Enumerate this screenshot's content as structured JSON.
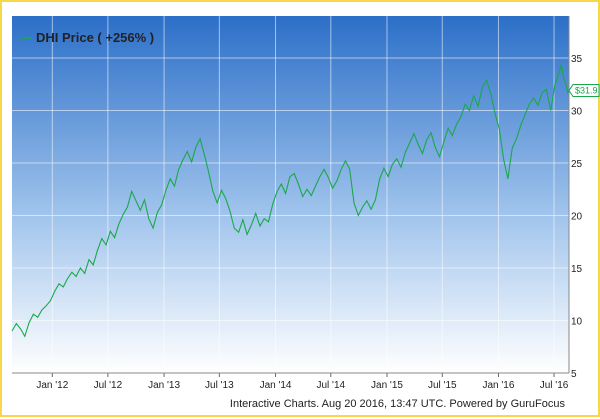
{
  "chart_data": {
    "type": "line",
    "legend": "DHI Price ( +256% )",
    "legend_position": "top-left",
    "series_color": "#1aa84a",
    "last_value_label": "$31.9",
    "credits": "Interactive Charts. Aug 20 2016, 13:47 UTC. Powered by GuruFocus",
    "grid": true,
    "ylim": [
      5,
      39
    ],
    "y_ticks": [
      5,
      10,
      15,
      20,
      25,
      30,
      35
    ],
    "x_ticks": [
      {
        "label": "Jan '12",
        "date": "2012-01-01"
      },
      {
        "label": "Jul '12",
        "date": "2012-07-01"
      },
      {
        "label": "Jan '13",
        "date": "2013-01-01"
      },
      {
        "label": "Jul '13",
        "date": "2013-07-01"
      },
      {
        "label": "Jan '14",
        "date": "2014-01-01"
      },
      {
        "label": "Jul '14",
        "date": "2014-07-01"
      },
      {
        "label": "Jan '15",
        "date": "2015-01-01"
      },
      {
        "label": "Jul '15",
        "date": "2015-07-01"
      },
      {
        "label": "Jan '16",
        "date": "2016-01-01"
      },
      {
        "label": "Jul '16",
        "date": "2016-07-01"
      }
    ],
    "x_range": [
      "2011-08-22",
      "2016-08-19"
    ],
    "series": [
      {
        "points": [
          [
            "2011-08-22",
            9.0
          ],
          [
            "2011-09-05",
            9.7
          ],
          [
            "2011-09-19",
            9.2
          ],
          [
            "2011-10-03",
            8.5
          ],
          [
            "2011-10-17",
            9.8
          ],
          [
            "2011-10-31",
            10.6
          ],
          [
            "2011-11-14",
            10.3
          ],
          [
            "2011-11-28",
            11.0
          ],
          [
            "2011-12-12",
            11.4
          ],
          [
            "2011-12-26",
            11.9
          ],
          [
            "2012-01-09",
            12.8
          ],
          [
            "2012-01-23",
            13.5
          ],
          [
            "2012-02-06",
            13.2
          ],
          [
            "2012-02-20",
            14.0
          ],
          [
            "2012-03-05",
            14.6
          ],
          [
            "2012-03-19",
            14.2
          ],
          [
            "2012-04-02",
            15.0
          ],
          [
            "2012-04-16",
            14.5
          ],
          [
            "2012-04-30",
            15.8
          ],
          [
            "2012-05-14",
            15.3
          ],
          [
            "2012-05-28",
            16.7
          ],
          [
            "2012-06-11",
            17.8
          ],
          [
            "2012-06-25",
            17.2
          ],
          [
            "2012-07-09",
            18.5
          ],
          [
            "2012-07-23",
            17.9
          ],
          [
            "2012-08-06",
            19.2
          ],
          [
            "2012-08-20",
            20.1
          ],
          [
            "2012-09-03",
            20.8
          ],
          [
            "2012-09-17",
            22.3
          ],
          [
            "2012-10-01",
            21.4
          ],
          [
            "2012-10-15",
            20.5
          ],
          [
            "2012-10-29",
            21.5
          ],
          [
            "2012-11-12",
            19.7
          ],
          [
            "2012-11-26",
            18.8
          ],
          [
            "2012-12-10",
            20.3
          ],
          [
            "2012-12-24",
            21.0
          ],
          [
            "2013-01-07",
            22.4
          ],
          [
            "2013-01-21",
            23.5
          ],
          [
            "2013-02-04",
            22.8
          ],
          [
            "2013-02-18",
            24.4
          ],
          [
            "2013-03-04",
            25.3
          ],
          [
            "2013-03-18",
            26.1
          ],
          [
            "2013-04-01",
            25.1
          ],
          [
            "2013-04-15",
            26.5
          ],
          [
            "2013-04-29",
            27.3
          ],
          [
            "2013-05-13",
            25.8
          ],
          [
            "2013-05-27",
            24.1
          ],
          [
            "2013-06-10",
            22.3
          ],
          [
            "2013-06-24",
            21.2
          ],
          [
            "2013-07-08",
            22.4
          ],
          [
            "2013-07-22",
            21.6
          ],
          [
            "2013-08-05",
            20.4
          ],
          [
            "2013-08-19",
            18.8
          ],
          [
            "2013-09-02",
            18.4
          ],
          [
            "2013-09-16",
            19.6
          ],
          [
            "2013-09-30",
            18.2
          ],
          [
            "2013-10-14",
            19.1
          ],
          [
            "2013-10-28",
            20.2
          ],
          [
            "2013-11-11",
            19.0
          ],
          [
            "2013-11-25",
            19.7
          ],
          [
            "2013-12-09",
            19.4
          ],
          [
            "2013-12-23",
            21.1
          ],
          [
            "2014-01-06",
            22.3
          ],
          [
            "2014-01-20",
            23.0
          ],
          [
            "2014-02-03",
            22.1
          ],
          [
            "2014-02-17",
            23.7
          ],
          [
            "2014-03-03",
            24.0
          ],
          [
            "2014-03-17",
            23.0
          ],
          [
            "2014-03-31",
            21.8
          ],
          [
            "2014-04-14",
            22.5
          ],
          [
            "2014-04-28",
            21.9
          ],
          [
            "2014-05-12",
            22.8
          ],
          [
            "2014-05-26",
            23.7
          ],
          [
            "2014-06-09",
            24.4
          ],
          [
            "2014-06-23",
            23.6
          ],
          [
            "2014-07-07",
            22.6
          ],
          [
            "2014-07-21",
            23.3
          ],
          [
            "2014-08-04",
            24.4
          ],
          [
            "2014-08-18",
            25.2
          ],
          [
            "2014-09-01",
            24.4
          ],
          [
            "2014-09-15",
            21.2
          ],
          [
            "2014-09-29",
            20.0
          ],
          [
            "2014-10-13",
            20.8
          ],
          [
            "2014-10-27",
            21.4
          ],
          [
            "2014-11-10",
            20.6
          ],
          [
            "2014-11-24",
            21.5
          ],
          [
            "2014-12-08",
            23.5
          ],
          [
            "2014-12-22",
            24.5
          ],
          [
            "2015-01-05",
            23.7
          ],
          [
            "2015-01-19",
            24.9
          ],
          [
            "2015-02-02",
            25.4
          ],
          [
            "2015-02-16",
            24.6
          ],
          [
            "2015-03-02",
            26.0
          ],
          [
            "2015-03-16",
            26.9
          ],
          [
            "2015-03-30",
            27.8
          ],
          [
            "2015-04-13",
            26.8
          ],
          [
            "2015-04-27",
            25.9
          ],
          [
            "2015-05-11",
            27.2
          ],
          [
            "2015-05-25",
            27.9
          ],
          [
            "2015-06-08",
            26.5
          ],
          [
            "2015-06-22",
            25.6
          ],
          [
            "2015-07-06",
            27.0
          ],
          [
            "2015-07-20",
            28.3
          ],
          [
            "2015-08-03",
            27.6
          ],
          [
            "2015-08-17",
            28.7
          ],
          [
            "2015-08-31",
            29.4
          ],
          [
            "2015-09-14",
            30.6
          ],
          [
            "2015-09-28",
            30.0
          ],
          [
            "2015-10-12",
            31.4
          ],
          [
            "2015-10-26",
            30.4
          ],
          [
            "2015-11-09",
            32.2
          ],
          [
            "2015-11-23",
            32.9
          ],
          [
            "2015-12-07",
            31.6
          ],
          [
            "2015-12-21",
            29.7
          ],
          [
            "2016-01-04",
            28.2
          ],
          [
            "2016-01-18",
            25.3
          ],
          [
            "2016-02-01",
            23.5
          ],
          [
            "2016-02-15",
            26.4
          ],
          [
            "2016-02-29",
            27.3
          ],
          [
            "2016-03-14",
            28.6
          ],
          [
            "2016-03-28",
            29.6
          ],
          [
            "2016-04-11",
            30.6
          ],
          [
            "2016-04-25",
            31.2
          ],
          [
            "2016-05-09",
            30.5
          ],
          [
            "2016-05-23",
            31.7
          ],
          [
            "2016-06-06",
            32.0
          ],
          [
            "2016-06-20",
            30.0
          ],
          [
            "2016-07-04",
            32.5
          ],
          [
            "2016-07-18",
            33.6
          ],
          [
            "2016-07-25",
            34.4
          ],
          [
            "2016-08-01",
            33.1
          ],
          [
            "2016-08-08",
            32.6
          ],
          [
            "2016-08-15",
            31.7
          ],
          [
            "2016-08-19",
            31.9
          ]
        ]
      }
    ]
  }
}
